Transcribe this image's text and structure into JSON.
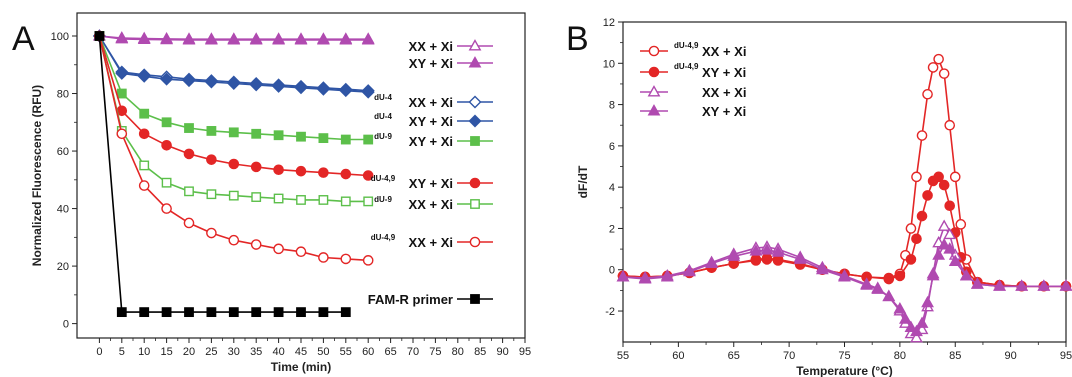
{
  "chart_data": [
    {
      "type": "line",
      "panel": "A",
      "xlabel": "Time (min)",
      "ylabel": "Normalized Fluorescence (RFU)",
      "xlim": [
        -5,
        95
      ],
      "ylim": [
        -5,
        108
      ],
      "xticks": [
        "0",
        "5",
        "10",
        "15",
        "20",
        "25",
        "30",
        "35",
        "40",
        "45",
        "50",
        "55",
        "60",
        "65",
        "70",
        "75",
        "80",
        "85",
        "90",
        "95"
      ],
      "yticks": [
        "0",
        "20",
        "40",
        "60",
        "80",
        "100"
      ],
      "series": [
        {
          "name": "XX + Xi",
          "sup": "",
          "color": "#b04ab0",
          "marker": "triangle-open",
          "x": [
            0,
            5,
            10,
            15,
            20,
            25,
            30,
            35,
            40,
            45,
            50,
            55,
            60
          ],
          "y": [
            100,
            99.3,
            99.1,
            99,
            98.9,
            98.9,
            98.9,
            98.9,
            98.9,
            98.9,
            98.9,
            98.9,
            98.9
          ]
        },
        {
          "name": "XY + Xi",
          "sup": "",
          "color": "#b04ab0",
          "marker": "triangle-filled",
          "x": [
            0,
            5,
            10,
            15,
            20,
            25,
            30,
            35,
            40,
            45,
            50,
            55,
            60
          ],
          "y": [
            100,
            99,
            98.8,
            98.7,
            98.6,
            98.6,
            98.6,
            98.6,
            98.6,
            98.6,
            98.6,
            98.6,
            98.6
          ]
        },
        {
          "name": "XX + Xi",
          "sup": "dU-4",
          "color": "#2f55a5",
          "marker": "diamond-open",
          "x": [
            0,
            5,
            10,
            15,
            20,
            25,
            30,
            35,
            40,
            45,
            50,
            55,
            60
          ],
          "y": [
            100,
            87.5,
            86.5,
            85.8,
            85,
            84.5,
            84,
            83.5,
            83,
            82.5,
            82,
            81.5,
            81
          ]
        },
        {
          "name": "XY + Xi",
          "sup": "dU-4",
          "color": "#2f55a5",
          "marker": "diamond-filled",
          "x": [
            0,
            5,
            10,
            15,
            20,
            25,
            30,
            35,
            40,
            45,
            50,
            55,
            60
          ],
          "y": [
            100,
            87,
            86,
            85,
            84.5,
            84,
            83.5,
            83,
            82.5,
            82,
            81.5,
            81,
            80.5
          ]
        },
        {
          "name": "XY + Xi",
          "sup": "dU-9",
          "color": "#5cbf4a",
          "marker": "square-filled",
          "x": [
            0,
            5,
            10,
            15,
            20,
            25,
            30,
            35,
            40,
            45,
            50,
            55,
            60
          ],
          "y": [
            100,
            80,
            73,
            70,
            68,
            67,
            66.5,
            66,
            65.5,
            65,
            64.5,
            64,
            64
          ]
        },
        {
          "name": "XY + Xi",
          "sup": "dU-4,9",
          "color": "#e32626",
          "marker": "circle-filled",
          "x": [
            0,
            5,
            10,
            15,
            20,
            25,
            30,
            35,
            40,
            45,
            50,
            55,
            60
          ],
          "y": [
            100,
            74,
            66,
            62,
            59,
            57,
            55.5,
            54.5,
            53.5,
            53,
            52.5,
            52,
            51.5
          ]
        },
        {
          "name": "XX + Xi",
          "sup": "dU-9",
          "color": "#5cbf4a",
          "marker": "square-open",
          "x": [
            0,
            5,
            10,
            15,
            20,
            25,
            30,
            35,
            40,
            45,
            50,
            55,
            60
          ],
          "y": [
            100,
            67,
            55,
            49,
            46,
            45,
            44.5,
            44,
            43.5,
            43,
            43,
            42.5,
            42.5
          ]
        },
        {
          "name": "XX + Xi",
          "sup": "dU-4,9",
          "color": "#e32626",
          "marker": "circle-open",
          "x": [
            0,
            5,
            10,
            15,
            20,
            25,
            30,
            35,
            40,
            45,
            50,
            55,
            60
          ],
          "y": [
            100,
            66,
            48,
            40,
            35,
            31.5,
            29,
            27.5,
            26,
            25,
            23,
            22.5,
            22
          ]
        },
        {
          "name": "FAM-R primer",
          "sup": "",
          "color": "#000000",
          "marker": "square-filled",
          "x": [
            0,
            5,
            10,
            15,
            20,
            25,
            30,
            35,
            40,
            45,
            50,
            55
          ],
          "y": [
            100,
            4,
            4,
            4,
            4,
            4,
            4,
            4,
            4,
            4,
            4,
            4
          ]
        }
      ]
    },
    {
      "type": "line",
      "panel": "B",
      "xlabel": "Temperature (°C)",
      "ylabel": "dF/dT",
      "xlim": [
        55,
        95
      ],
      "ylim": [
        -3.5,
        12
      ],
      "xticks": [
        "55",
        "60",
        "65",
        "70",
        "75",
        "80",
        "85",
        "90",
        "95"
      ],
      "yticks": [
        "-2",
        "0",
        "2",
        "4",
        "6",
        "8",
        "10",
        "12"
      ],
      "series": [
        {
          "name": "XX + Xi",
          "sup": "dU-4,9",
          "color": "#e32626",
          "marker": "circle-open",
          "x": [
            55,
            57,
            59,
            61,
            63,
            65,
            67,
            68,
            69,
            71,
            73,
            75,
            77,
            79,
            80,
            80.5,
            81,
            81.5,
            82,
            82.5,
            83,
            83.5,
            84,
            84.5,
            85,
            85.5,
            86,
            87,
            89,
            91,
            93,
            95
          ],
          "y": [
            -0.3,
            -0.35,
            -0.3,
            -0.15,
            0.1,
            0.3,
            0.5,
            0.55,
            0.5,
            0.3,
            0,
            -0.2,
            -0.35,
            -0.4,
            -0.2,
            0.7,
            2,
            4.5,
            6.5,
            8.5,
            9.8,
            10.2,
            9.5,
            7,
            4.5,
            2.2,
            0.5,
            -0.6,
            -0.75,
            -0.8,
            -0.8,
            -0.8
          ]
        },
        {
          "name": "XY + Xi",
          "sup": "dU-4,9",
          "color": "#e32626",
          "marker": "circle-filled",
          "x": [
            55,
            57,
            59,
            61,
            63,
            65,
            67,
            68,
            69,
            71,
            73,
            75,
            77,
            79,
            80,
            81,
            81.5,
            82,
            82.5,
            83,
            83.5,
            84,
            84.5,
            85,
            85.5,
            86,
            87,
            89,
            91,
            93,
            95
          ],
          "y": [
            -0.3,
            -0.35,
            -0.3,
            -0.15,
            0.1,
            0.3,
            0.45,
            0.5,
            0.45,
            0.25,
            0,
            -0.2,
            -0.35,
            -0.45,
            -0.3,
            0.5,
            1.5,
            2.6,
            3.6,
            4.3,
            4.5,
            4.1,
            3.1,
            1.8,
            0.6,
            -0.1,
            -0.6,
            -0.75,
            -0.8,
            -0.8,
            -0.8
          ]
        },
        {
          "name": "XX + Xi",
          "sup": "",
          "color": "#b04ab0",
          "marker": "triangle-open",
          "x": [
            55,
            57,
            59,
            61,
            63,
            65,
            67,
            68,
            69,
            71,
            73,
            75,
            77,
            78,
            79,
            80,
            80.5,
            81,
            81.5,
            82,
            82.5,
            83,
            83.5,
            84,
            84.5,
            85,
            86,
            87,
            89,
            91,
            93,
            95
          ],
          "y": [
            -0.35,
            -0.4,
            -0.3,
            -0.05,
            0.35,
            0.75,
            1.05,
            1.1,
            1,
            0.6,
            0.1,
            -0.3,
            -0.7,
            -0.9,
            -1.3,
            -2,
            -2.6,
            -3.1,
            -3.3,
            -2.9,
            -1.8,
            -0.2,
            1.3,
            2.1,
            1.7,
            0.7,
            -0.3,
            -0.7,
            -0.8,
            -0.8,
            -0.8,
            -0.8
          ]
        },
        {
          "name": "XY + Xi",
          "sup": "",
          "color": "#b04ab0",
          "marker": "triangle-filled",
          "x": [
            55,
            57,
            59,
            61,
            63,
            65,
            67,
            68,
            69,
            71,
            73,
            75,
            77,
            78,
            79,
            80,
            80.5,
            81,
            81.5,
            82,
            82.5,
            83,
            83.5,
            84,
            84.5,
            85,
            86,
            87,
            89,
            91,
            93,
            95
          ],
          "y": [
            -0.35,
            -0.45,
            -0.35,
            -0.1,
            0.3,
            0.65,
            0.9,
            0.95,
            0.85,
            0.5,
            0,
            -0.35,
            -0.75,
            -0.95,
            -1.3,
            -1.9,
            -2.4,
            -2.8,
            -3.0,
            -2.6,
            -1.6,
            -0.3,
            0.7,
            1.2,
            1,
            0.4,
            -0.3,
            -0.7,
            -0.8,
            -0.8,
            -0.8,
            -0.8
          ]
        }
      ]
    }
  ]
}
